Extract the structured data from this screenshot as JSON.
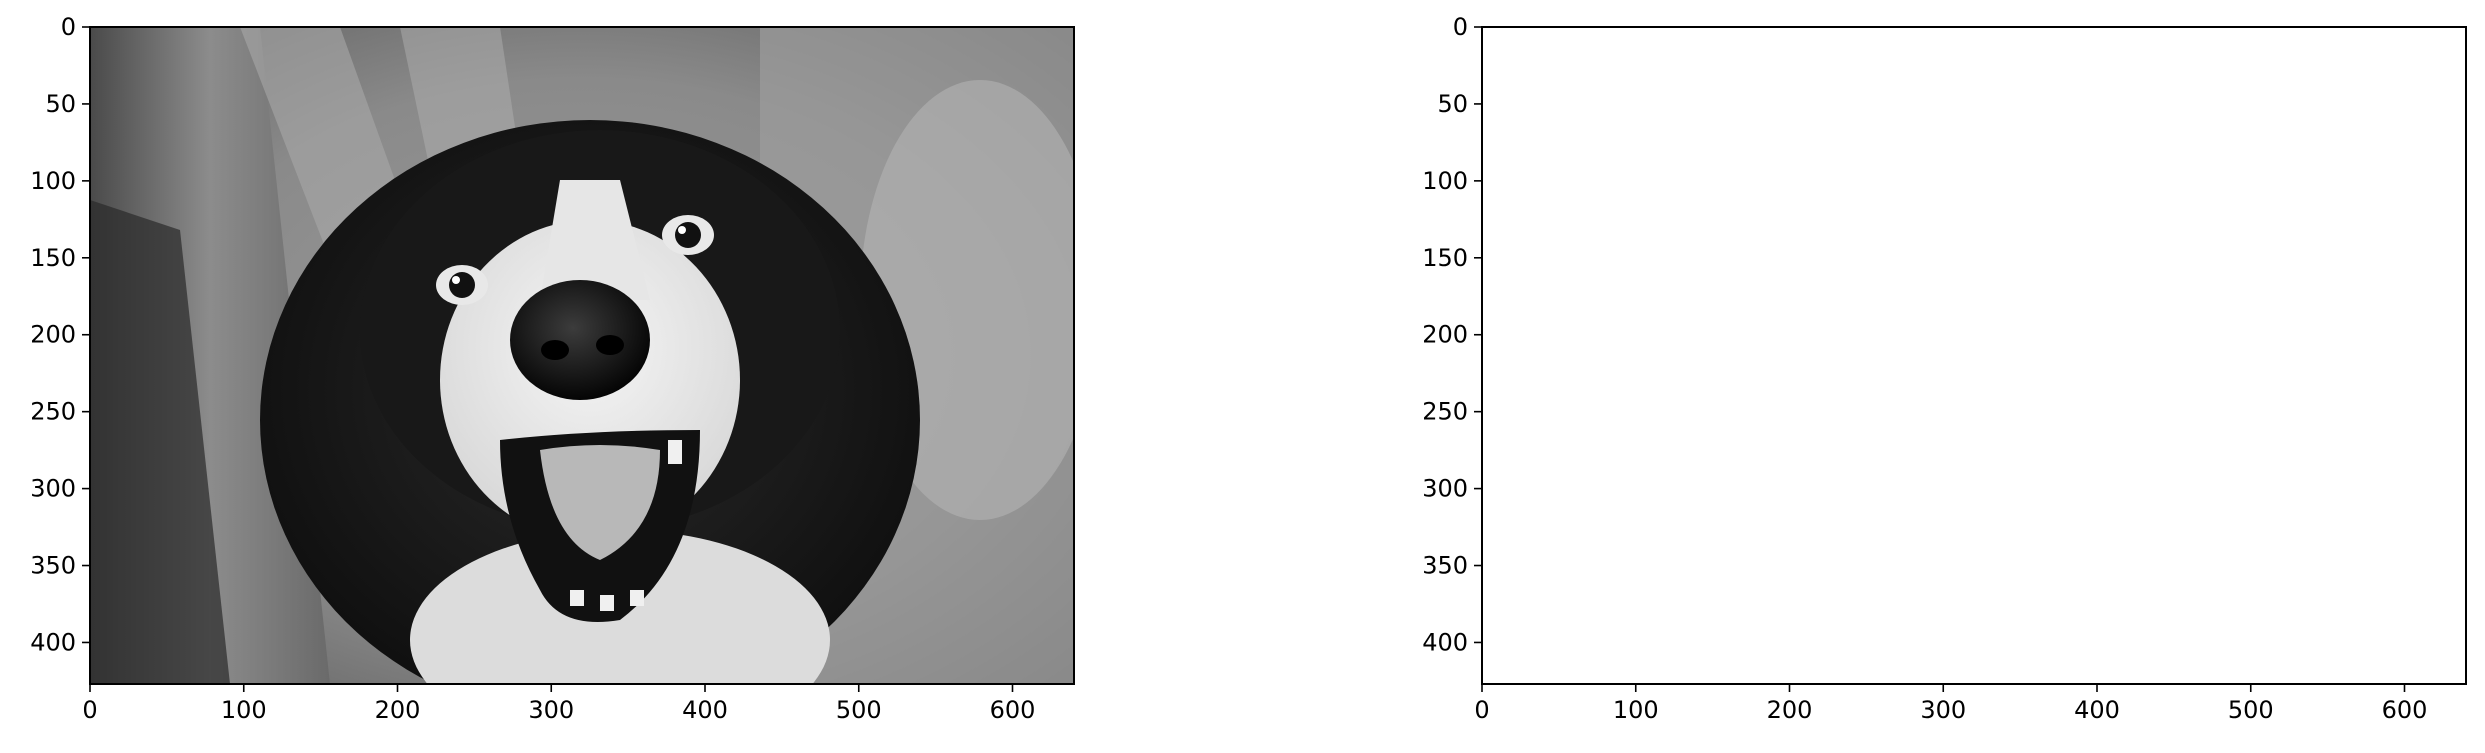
{
  "figure": {
    "background": "#ffffff"
  },
  "chart_data": [
    {
      "type": "image",
      "image_description_icon": "grayscale-dog-photo",
      "xlim": [
        0,
        640
      ],
      "ylim": [
        427,
        0
      ],
      "x_ticks": [
        0,
        100,
        200,
        300,
        400,
        500,
        600
      ],
      "y_ticks": [
        0,
        50,
        100,
        150,
        200,
        250,
        300,
        350,
        400
      ],
      "x_tick_labels": [
        "0",
        "100",
        "200",
        "300",
        "400",
        "500",
        "600"
      ],
      "y_tick_labels": [
        "0",
        "50",
        "100",
        "150",
        "200",
        "250",
        "300",
        "350",
        "400"
      ],
      "grid": false,
      "title": "",
      "xlabel": "",
      "ylabel": ""
    },
    {
      "type": "image",
      "image_description_icon": "blank-white-image",
      "xlim": [
        0,
        640
      ],
      "ylim": [
        427,
        0
      ],
      "x_ticks": [
        0,
        100,
        200,
        300,
        400,
        500,
        600
      ],
      "y_ticks": [
        0,
        50,
        100,
        150,
        200,
        250,
        300,
        350,
        400
      ],
      "x_tick_labels": [
        "0",
        "100",
        "200",
        "300",
        "400",
        "500",
        "600"
      ],
      "y_tick_labels": [
        "0",
        "50",
        "100",
        "150",
        "200",
        "250",
        "300",
        "350",
        "400"
      ],
      "grid": false,
      "title": "",
      "xlabel": "",
      "ylabel": ""
    }
  ]
}
